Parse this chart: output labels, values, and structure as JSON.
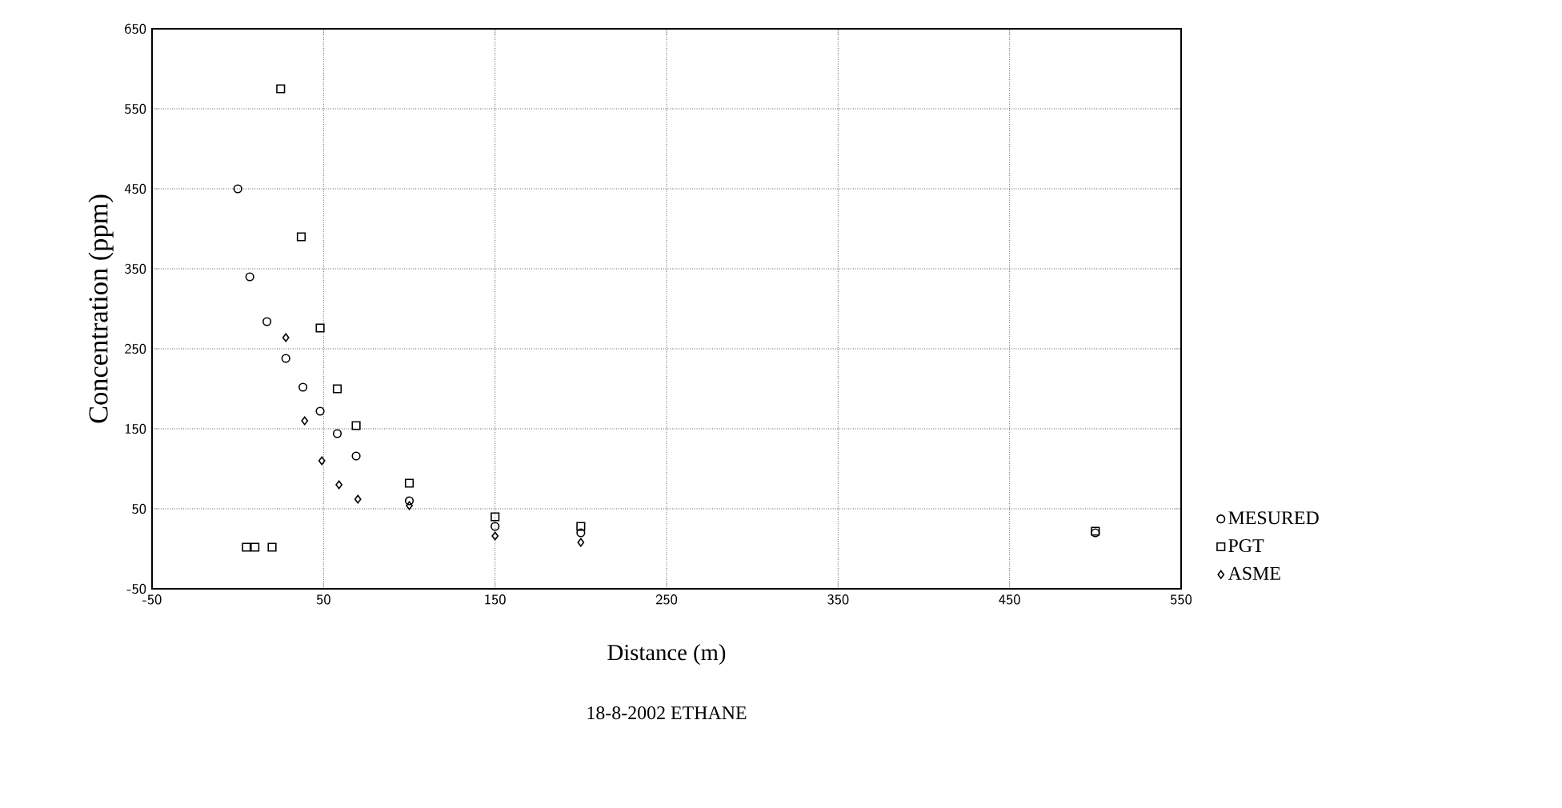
{
  "chart_data": {
    "type": "scatter",
    "xlabel": "Distance (m)",
    "ylabel": "Concentration (ppm)",
    "annotations": [
      "18-8-2002 ETHANE"
    ],
    "xlim": [
      -50,
      550
    ],
    "xticks": [
      -50,
      50,
      150,
      250,
      350,
      450,
      550
    ],
    "ylim": [
      -50,
      650
    ],
    "yticks": [
      -50,
      50,
      150,
      250,
      350,
      450,
      550,
      650
    ],
    "grid": true,
    "legend": "right",
    "series": [
      {
        "name": "MESURED",
        "color": "#000000",
        "marker": "circle",
        "x": [
          0,
          7,
          17,
          28,
          38,
          48,
          58,
          69,
          100,
          150,
          200,
          500
        ],
        "values": [
          450,
          340,
          284,
          238,
          202,
          172,
          144,
          116,
          60,
          28,
          20,
          20
        ]
      },
      {
        "name": "PGT",
        "color": "#000000",
        "marker": "square",
        "x": [
          5,
          10,
          20,
          25,
          37,
          48,
          58,
          69,
          100,
          150,
          200,
          500
        ],
        "values": [
          2,
          2,
          2,
          575,
          390,
          276,
          200,
          154,
          82,
          40,
          28,
          22
        ]
      },
      {
        "name": "ASME",
        "color": "#000000",
        "marker": "diamond",
        "x": [
          28,
          39,
          49,
          59,
          70,
          100,
          150,
          200
        ],
        "values": [
          264,
          160,
          110,
          80,
          62,
          54,
          16,
          8
        ]
      }
    ]
  }
}
